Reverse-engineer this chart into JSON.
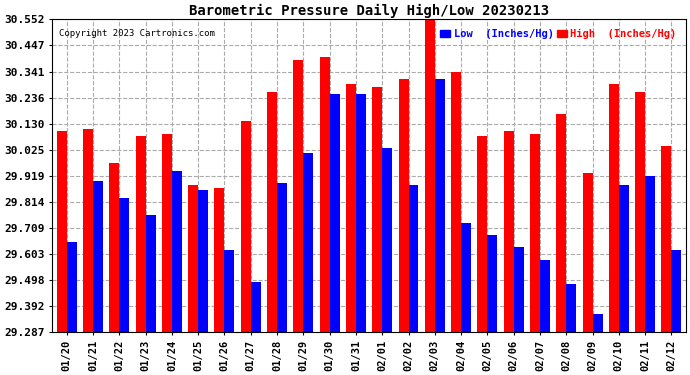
{
  "title": "Barometric Pressure Daily High/Low 20230213",
  "copyright": "Copyright 2023 Cartronics.com",
  "legend_low_label": "Low  (Inches/Hg)",
  "legend_high_label": "High  (Inches/Hg)",
  "low_color": "#0000FF",
  "high_color": "#FF0000",
  "bg_color": "#FFFFFF",
  "grid_color": "#AAAAAA",
  "ylim": [
    29.287,
    30.552
  ],
  "yticks": [
    29.287,
    29.392,
    29.498,
    29.603,
    29.709,
    29.814,
    29.919,
    30.025,
    30.13,
    30.236,
    30.341,
    30.447,
    30.552
  ],
  "dates": [
    "01/20",
    "01/21",
    "01/22",
    "01/23",
    "01/24",
    "01/25",
    "01/26",
    "01/27",
    "01/28",
    "01/29",
    "01/30",
    "01/31",
    "02/01",
    "02/02",
    "02/03",
    "02/04",
    "02/05",
    "02/06",
    "02/07",
    "02/08",
    "02/09",
    "02/10",
    "02/11",
    "02/12"
  ],
  "high_values": [
    30.1,
    30.11,
    29.97,
    30.08,
    30.09,
    29.88,
    29.87,
    30.14,
    30.26,
    30.39,
    30.4,
    30.29,
    30.28,
    30.31,
    30.56,
    30.34,
    30.08,
    30.1,
    30.09,
    30.17,
    29.93,
    30.29,
    30.26,
    30.04
  ],
  "low_values": [
    29.65,
    29.9,
    29.83,
    29.76,
    29.94,
    29.86,
    29.62,
    29.49,
    29.89,
    30.01,
    30.25,
    30.25,
    30.03,
    29.88,
    30.31,
    29.73,
    29.68,
    29.63,
    29.58,
    29.48,
    29.36,
    29.88,
    29.92,
    29.62
  ],
  "ymin": 29.287,
  "bar_width": 0.38
}
